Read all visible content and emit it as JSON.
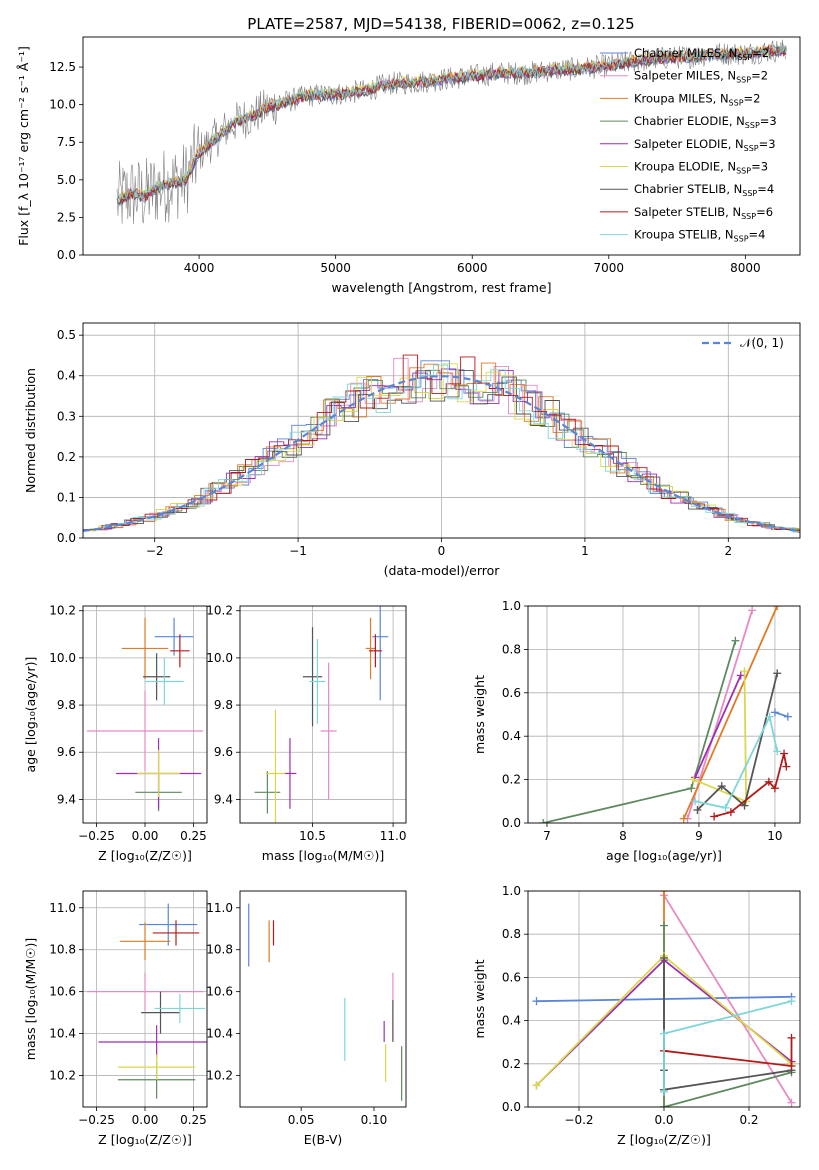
{
  "figure": {
    "title": "PLATE=2587, MJD=54138, FIBERID=0062, z=0.125"
  },
  "colors": {
    "Chabrier MILES": "#5a86d8",
    "Salpeter MILES": "#e88ac2",
    "Kroupa MILES": "#e07b26",
    "Chabrier ELODIE": "#5e8a5e",
    "Salpeter ELODIE": "#9b2fb5",
    "Kroupa ELODIE": "#d9d84a",
    "Chabrier STELIB": "#555555",
    "Salpeter STELIB": "#b31b1b",
    "Kroupa STELIB": "#7fd6d8"
  },
  "chart_data": [
    {
      "id": "spectrum",
      "type": "line",
      "title": "PLATE=2587, MJD=54138, FIBERID=0062, z=0.125",
      "xlabel": "wavelength [Angstrom, rest frame]",
      "ylabel": "Flux [f_λ 10⁻¹⁷ erg cm⁻² s⁻¹ Å⁻¹]",
      "xlim": [
        3150,
        8400
      ],
      "ylim": [
        0,
        14.5
      ],
      "xticks": [
        4000,
        5000,
        6000,
        7000,
        8000
      ],
      "yticks": [
        0.0,
        2.5,
        5.0,
        7.5,
        10.0,
        12.5
      ],
      "grid": false,
      "legend_position": "top-right",
      "data_curve": {
        "x": [
          3400,
          3500,
          3600,
          3700,
          3800,
          3900,
          4000,
          4100,
          4200,
          4300,
          4400,
          4500,
          4600,
          4800,
          5000,
          5200,
          5400,
          5600,
          5800,
          6000,
          6200,
          6400,
          6600,
          6800,
          7000,
          7200,
          7400,
          7600,
          7800,
          8000,
          8200
        ],
        "y": [
          3.6,
          4.1,
          3.9,
          4.5,
          4.8,
          5.0,
          6.8,
          7.6,
          8.4,
          9.0,
          9.3,
          9.8,
          10.1,
          10.6,
          10.7,
          10.9,
          11.4,
          11.5,
          11.7,
          11.9,
          12.1,
          12.1,
          12.3,
          12.4,
          12.6,
          12.9,
          13.1,
          13.2,
          13.4,
          13.4,
          13.6
        ]
      },
      "series": [
        {
          "name": "Chabrier MILES, N_SSP=2",
          "n_ssp": "2"
        },
        {
          "name": "Salpeter MILES, N_SSP=2",
          "n_ssp": "2"
        },
        {
          "name": "Kroupa MILES, N_SSP=2",
          "n_ssp": "2"
        },
        {
          "name": "Chabrier ELODIE, N_SSP=3",
          "n_ssp": "3"
        },
        {
          "name": "Salpeter ELODIE, N_SSP=3",
          "n_ssp": "3"
        },
        {
          "name": "Kroupa ELODIE, N_SSP=3",
          "n_ssp": "3"
        },
        {
          "name": "Chabrier STELIB, N_SSP=4",
          "n_ssp": "4"
        },
        {
          "name": "Salpeter STELIB, N_SSP=6",
          "n_ssp": "6"
        },
        {
          "name": "Kroupa STELIB, N_SSP=4",
          "n_ssp": "4"
        }
      ],
      "legend_labels": [
        {
          "base": "Chabrier MILES, N",
          "sub": "SSP",
          "tail": "=2"
        },
        {
          "base": "Salpeter MILES, N",
          "sub": "SSP",
          "tail": "=2"
        },
        {
          "base": "Kroupa MILES, N",
          "sub": "SSP",
          "tail": "=2"
        },
        {
          "base": "Chabrier ELODIE, N",
          "sub": "SSP",
          "tail": "=3"
        },
        {
          "base": "Salpeter ELODIE, N",
          "sub": "SSP",
          "tail": "=3"
        },
        {
          "base": "Kroupa ELODIE, N",
          "sub": "SSP",
          "tail": "=3"
        },
        {
          "base": "Chabrier STELIB, N",
          "sub": "SSP",
          "tail": "=4"
        },
        {
          "base": "Salpeter STELIB, N",
          "sub": "SSP",
          "tail": "=6"
        },
        {
          "base": "Kroupa STELIB, N",
          "sub": "SSP",
          "tail": "=4"
        }
      ]
    },
    {
      "id": "residuals",
      "type": "line",
      "xlabel": "(data-model)/error",
      "ylabel": "Normed distribution",
      "xlim": [
        -2.5,
        2.5
      ],
      "ylim": [
        0,
        0.53
      ],
      "xticks": [
        -2,
        -1,
        0,
        1,
        2
      ],
      "yticks": [
        0.0,
        0.1,
        0.2,
        0.3,
        0.4,
        0.5
      ],
      "grid": true,
      "legend_position": "top-right",
      "reference_curve": "𝒩(0, 1)",
      "bin_width": 0.1
    },
    {
      "id": "age_vs_Z",
      "type": "scatter",
      "xlabel": "Z [log₁₀(Z/Z☉)]",
      "ylabel": "age [log₁₀(age/yr)]",
      "xlim": [
        -0.32,
        0.32
      ],
      "ylim": [
        9.3,
        10.22
      ],
      "xticks": [
        -0.25,
        0.0,
        0.25
      ],
      "yticks": [
        9.4,
        9.6,
        9.8,
        10.0,
        10.2
      ],
      "grid": true,
      "points": [
        {
          "series": "Chabrier MILES",
          "x": 0.15,
          "y": 10.09,
          "xerr": 0.1,
          "yerr": 0.08
        },
        {
          "series": "Salpeter MILES",
          "x": 0.0,
          "y": 9.69,
          "xerr": 0.3,
          "yerr": 0.17
        },
        {
          "series": "Kroupa MILES",
          "x": 0.0,
          "y": 10.04,
          "xerr": 0.12,
          "yerr": 0.13
        },
        {
          "series": "Chabrier ELODIE",
          "x": 0.07,
          "y": 9.43,
          "xerr": 0.12,
          "yerr": 0.08
        },
        {
          "series": "Salpeter ELODIE",
          "x": 0.07,
          "y": 9.51,
          "xerr": 0.22,
          "yerr": 0.15
        },
        {
          "series": "Kroupa ELODIE",
          "x": 0.07,
          "y": 9.51,
          "xerr": 0.11,
          "yerr": 0.1
        },
        {
          "series": "Chabrier STELIB",
          "x": 0.06,
          "y": 9.92,
          "xerr": 0.07,
          "yerr": 0.1
        },
        {
          "series": "Salpeter STELIB",
          "x": 0.18,
          "y": 10.03,
          "xerr": 0.05,
          "yerr": 0.07
        },
        {
          "series": "Kroupa STELIB",
          "x": 0.1,
          "y": 9.9,
          "xerr": 0.1,
          "yerr": 0.1
        }
      ]
    },
    {
      "id": "age_vs_mass",
      "type": "scatter",
      "xlabel": "mass [log₁₀(M/M☉)]",
      "ylabel": "",
      "xlim": [
        10.05,
        11.08
      ],
      "ylim": [
        9.3,
        10.22
      ],
      "xticks": [
        10.5,
        11.0
      ],
      "yticks": [
        9.4,
        9.6,
        9.8,
        10.0,
        10.2
      ],
      "grid": true,
      "points": [
        {
          "series": "Chabrier MILES",
          "x": 10.92,
          "y": 10.09,
          "xerr": 0.05,
          "yerr": 0.27
        },
        {
          "series": "Salpeter MILES",
          "x": 10.6,
          "y": 9.69,
          "xerr": 0.05,
          "yerr": 0.29
        },
        {
          "series": "Kroupa MILES",
          "x": 10.86,
          "y": 10.04,
          "xerr": 0.03,
          "yerr": 0.13
        },
        {
          "series": "Chabrier ELODIE",
          "x": 10.22,
          "y": 9.43,
          "xerr": 0.08,
          "yerr": 0.09
        },
        {
          "series": "Salpeter ELODIE",
          "x": 10.36,
          "y": 9.51,
          "xerr": 0.04,
          "yerr": 0.15
        },
        {
          "series": "Kroupa ELODIE",
          "x": 10.27,
          "y": 9.51,
          "xerr": 0.06,
          "yerr": 0.27
        },
        {
          "series": "Chabrier STELIB",
          "x": 10.5,
          "y": 9.92,
          "xerr": 0.06,
          "yerr": 0.21
        },
        {
          "series": "Salpeter STELIB",
          "x": 10.89,
          "y": 10.03,
          "xerr": 0.04,
          "yerr": 0.07
        },
        {
          "series": "Kroupa STELIB",
          "x": 10.53,
          "y": 9.9,
          "xerr": 0.05,
          "yerr": 0.18
        }
      ]
    },
    {
      "id": "massweight_vs_age",
      "type": "line",
      "xlabel": "age [log₁₀(age/yr)]",
      "ylabel": "mass weight",
      "xlim": [
        6.75,
        10.33
      ],
      "ylim": [
        0,
        1
      ],
      "xticks": [
        7,
        8,
        9,
        10
      ],
      "yticks": [
        0.0,
        0.2,
        0.4,
        0.6,
        0.8,
        1.0
      ],
      "grid": true,
      "series": [
        {
          "name": "Chabrier MILES",
          "x": [
            10.0,
            10.17
          ],
          "y": [
            0.51,
            0.49
          ]
        },
        {
          "name": "Salpeter MILES",
          "x": [
            8.85,
            9.7
          ],
          "y": [
            0.02,
            0.98
          ]
        },
        {
          "name": "Kroupa MILES",
          "x": [
            8.8,
            10.03
          ],
          "y": [
            0.02,
            1.0
          ]
        },
        {
          "name": "Chabrier ELODIE",
          "x": [
            6.95,
            8.9,
            9.48
          ],
          "y": [
            0.0,
            0.16,
            0.84
          ]
        },
        {
          "name": "Salpeter ELODIE",
          "x": [
            8.95,
            9.55
          ],
          "y": [
            0.21,
            0.68
          ]
        },
        {
          "name": "Kroupa ELODIE",
          "x": [
            8.93,
            9.62,
            9.6
          ],
          "y": [
            0.2,
            0.1,
            0.7
          ]
        },
        {
          "name": "Chabrier STELIB",
          "x": [
            8.98,
            9.3,
            9.6,
            10.03
          ],
          "y": [
            0.06,
            0.17,
            0.08,
            0.69
          ]
        },
        {
          "name": "Salpeter STELIB",
          "x": [
            9.2,
            9.42,
            9.92,
            10.0,
            10.12,
            10.15
          ],
          "y": [
            0.03,
            0.05,
            0.19,
            0.16,
            0.32,
            0.26
          ]
        },
        {
          "name": "Kroupa STELIB",
          "x": [
            8.95,
            9.35,
            9.93,
            10.03
          ],
          "y": [
            0.1,
            0.07,
            0.49,
            0.33
          ]
        }
      ]
    },
    {
      "id": "mass_vs_Z",
      "type": "scatter",
      "xlabel": "Z [log₁₀(Z/Z☉)]",
      "ylabel": "mass [log₁₀(M/M☉)]",
      "xlim": [
        -0.32,
        0.32
      ],
      "ylim": [
        10.05,
        11.08
      ],
      "xticks": [
        -0.25,
        0.0,
        0.25
      ],
      "yticks": [
        10.2,
        10.4,
        10.6,
        10.8,
        11.0
      ],
      "grid": true,
      "points": [
        {
          "series": "Chabrier MILES",
          "x": 0.12,
          "y": 10.92,
          "xerr": 0.15,
          "yerr": 0.1
        },
        {
          "series": "Salpeter MILES",
          "x": 0.0,
          "y": 10.6,
          "xerr": 0.3,
          "yerr": 0.09
        },
        {
          "series": "Kroupa MILES",
          "x": 0.0,
          "y": 10.84,
          "xerr": 0.13,
          "yerr": 0.09
        },
        {
          "series": "Chabrier ELODIE",
          "x": 0.06,
          "y": 10.18,
          "xerr": 0.2,
          "yerr": 0.09
        },
        {
          "series": "Salpeter ELODIE",
          "x": 0.06,
          "y": 10.36,
          "xerr": 0.3,
          "yerr": 0.08
        },
        {
          "series": "Kroupa ELODIE",
          "x": 0.06,
          "y": 10.24,
          "xerr": 0.2,
          "yerr": 0.06
        },
        {
          "series": "Chabrier STELIB",
          "x": 0.08,
          "y": 10.5,
          "xerr": 0.1,
          "yerr": 0.1
        },
        {
          "series": "Salpeter STELIB",
          "x": 0.16,
          "y": 10.88,
          "xerr": 0.12,
          "yerr": 0.06
        },
        {
          "series": "Kroupa STELIB",
          "x": 0.18,
          "y": 10.52,
          "xerr": 0.13,
          "yerr": 0.07
        }
      ]
    },
    {
      "id": "mass_vs_EBV",
      "type": "scatter",
      "xlabel": "E(B-V)",
      "ylabel": "",
      "xlim": [
        0.008,
        0.122
      ],
      "ylim": [
        10.05,
        11.08
      ],
      "xticks": [
        0.05,
        0.1
      ],
      "yticks": [
        10.2,
        10.4,
        10.6,
        10.8,
        11.0
      ],
      "grid": false,
      "points": [
        {
          "series": "Chabrier MILES",
          "x": 0.014,
          "y": 10.87,
          "yerr": 0.15
        },
        {
          "series": "Salpeter MILES",
          "x": 0.113,
          "y": 10.53,
          "yerr": 0.16
        },
        {
          "series": "Kroupa MILES",
          "x": 0.028,
          "y": 10.84,
          "yerr": 0.1
        },
        {
          "series": "Chabrier ELODIE",
          "x": 0.119,
          "y": 10.21,
          "yerr": 0.13
        },
        {
          "series": "Salpeter ELODIE",
          "x": 0.107,
          "y": 10.41,
          "yerr": 0.05
        },
        {
          "series": "Kroupa ELODIE",
          "x": 0.108,
          "y": 10.26,
          "yerr": 0.09
        },
        {
          "series": "Chabrier STELIB",
          "x": 0.113,
          "y": 10.46,
          "yerr": 0.1
        },
        {
          "series": "Salpeter STELIB",
          "x": 0.031,
          "y": 10.88,
          "yerr": 0.06
        },
        {
          "series": "Kroupa STELIB",
          "x": 0.08,
          "y": 10.42,
          "yerr": 0.15
        }
      ]
    },
    {
      "id": "massweight_vs_Z",
      "type": "line",
      "xlabel": "Z [log₁₀(Z/Z☉)]",
      "ylabel": "mass weight",
      "xlim": [
        -0.32,
        0.32
      ],
      "ylim": [
        0,
        1
      ],
      "xticks": [
        -0.2,
        0.0,
        0.2
      ],
      "yticks": [
        0.0,
        0.2,
        0.4,
        0.6,
        0.8,
        1.0
      ],
      "grid": true,
      "series": [
        {
          "name": "Chabrier MILES",
          "x": [
            -0.3,
            0.3
          ],
          "y": [
            0.49,
            0.51
          ]
        },
        {
          "name": "Salpeter MILES",
          "x": [
            0.0,
            0.3
          ],
          "y": [
            0.98,
            0.02
          ]
        },
        {
          "name": "Kroupa MILES",
          "x": [
            0.0,
            0.0
          ],
          "y": [
            0.0,
            1.0
          ]
        },
        {
          "name": "Chabrier ELODIE",
          "x": [
            0.0,
            0.0,
            0.3
          ],
          "y": [
            0.84,
            0.0,
            0.16
          ]
        },
        {
          "name": "Salpeter ELODIE",
          "x": [
            -0.3,
            0.0,
            0.3
          ],
          "y": [
            0.1,
            0.68,
            0.21
          ]
        },
        {
          "name": "Kroupa ELODIE",
          "x": [
            -0.3,
            0.0,
            0.3
          ],
          "y": [
            0.1,
            0.7,
            0.2
          ]
        },
        {
          "name": "Chabrier STELIB",
          "x": [
            0.0,
            0.0,
            0.0,
            0.3
          ],
          "y": [
            0.69,
            0.17,
            0.08,
            0.17
          ]
        },
        {
          "name": "Salpeter STELIB",
          "x": [
            0.0,
            0.3,
            0.3
          ],
          "y": [
            0.26,
            0.19,
            0.32
          ]
        },
        {
          "name": "Kroupa STELIB",
          "x": [
            0.0,
            0.0,
            0.3
          ],
          "y": [
            0.07,
            0.34,
            0.49
          ]
        }
      ]
    }
  ]
}
